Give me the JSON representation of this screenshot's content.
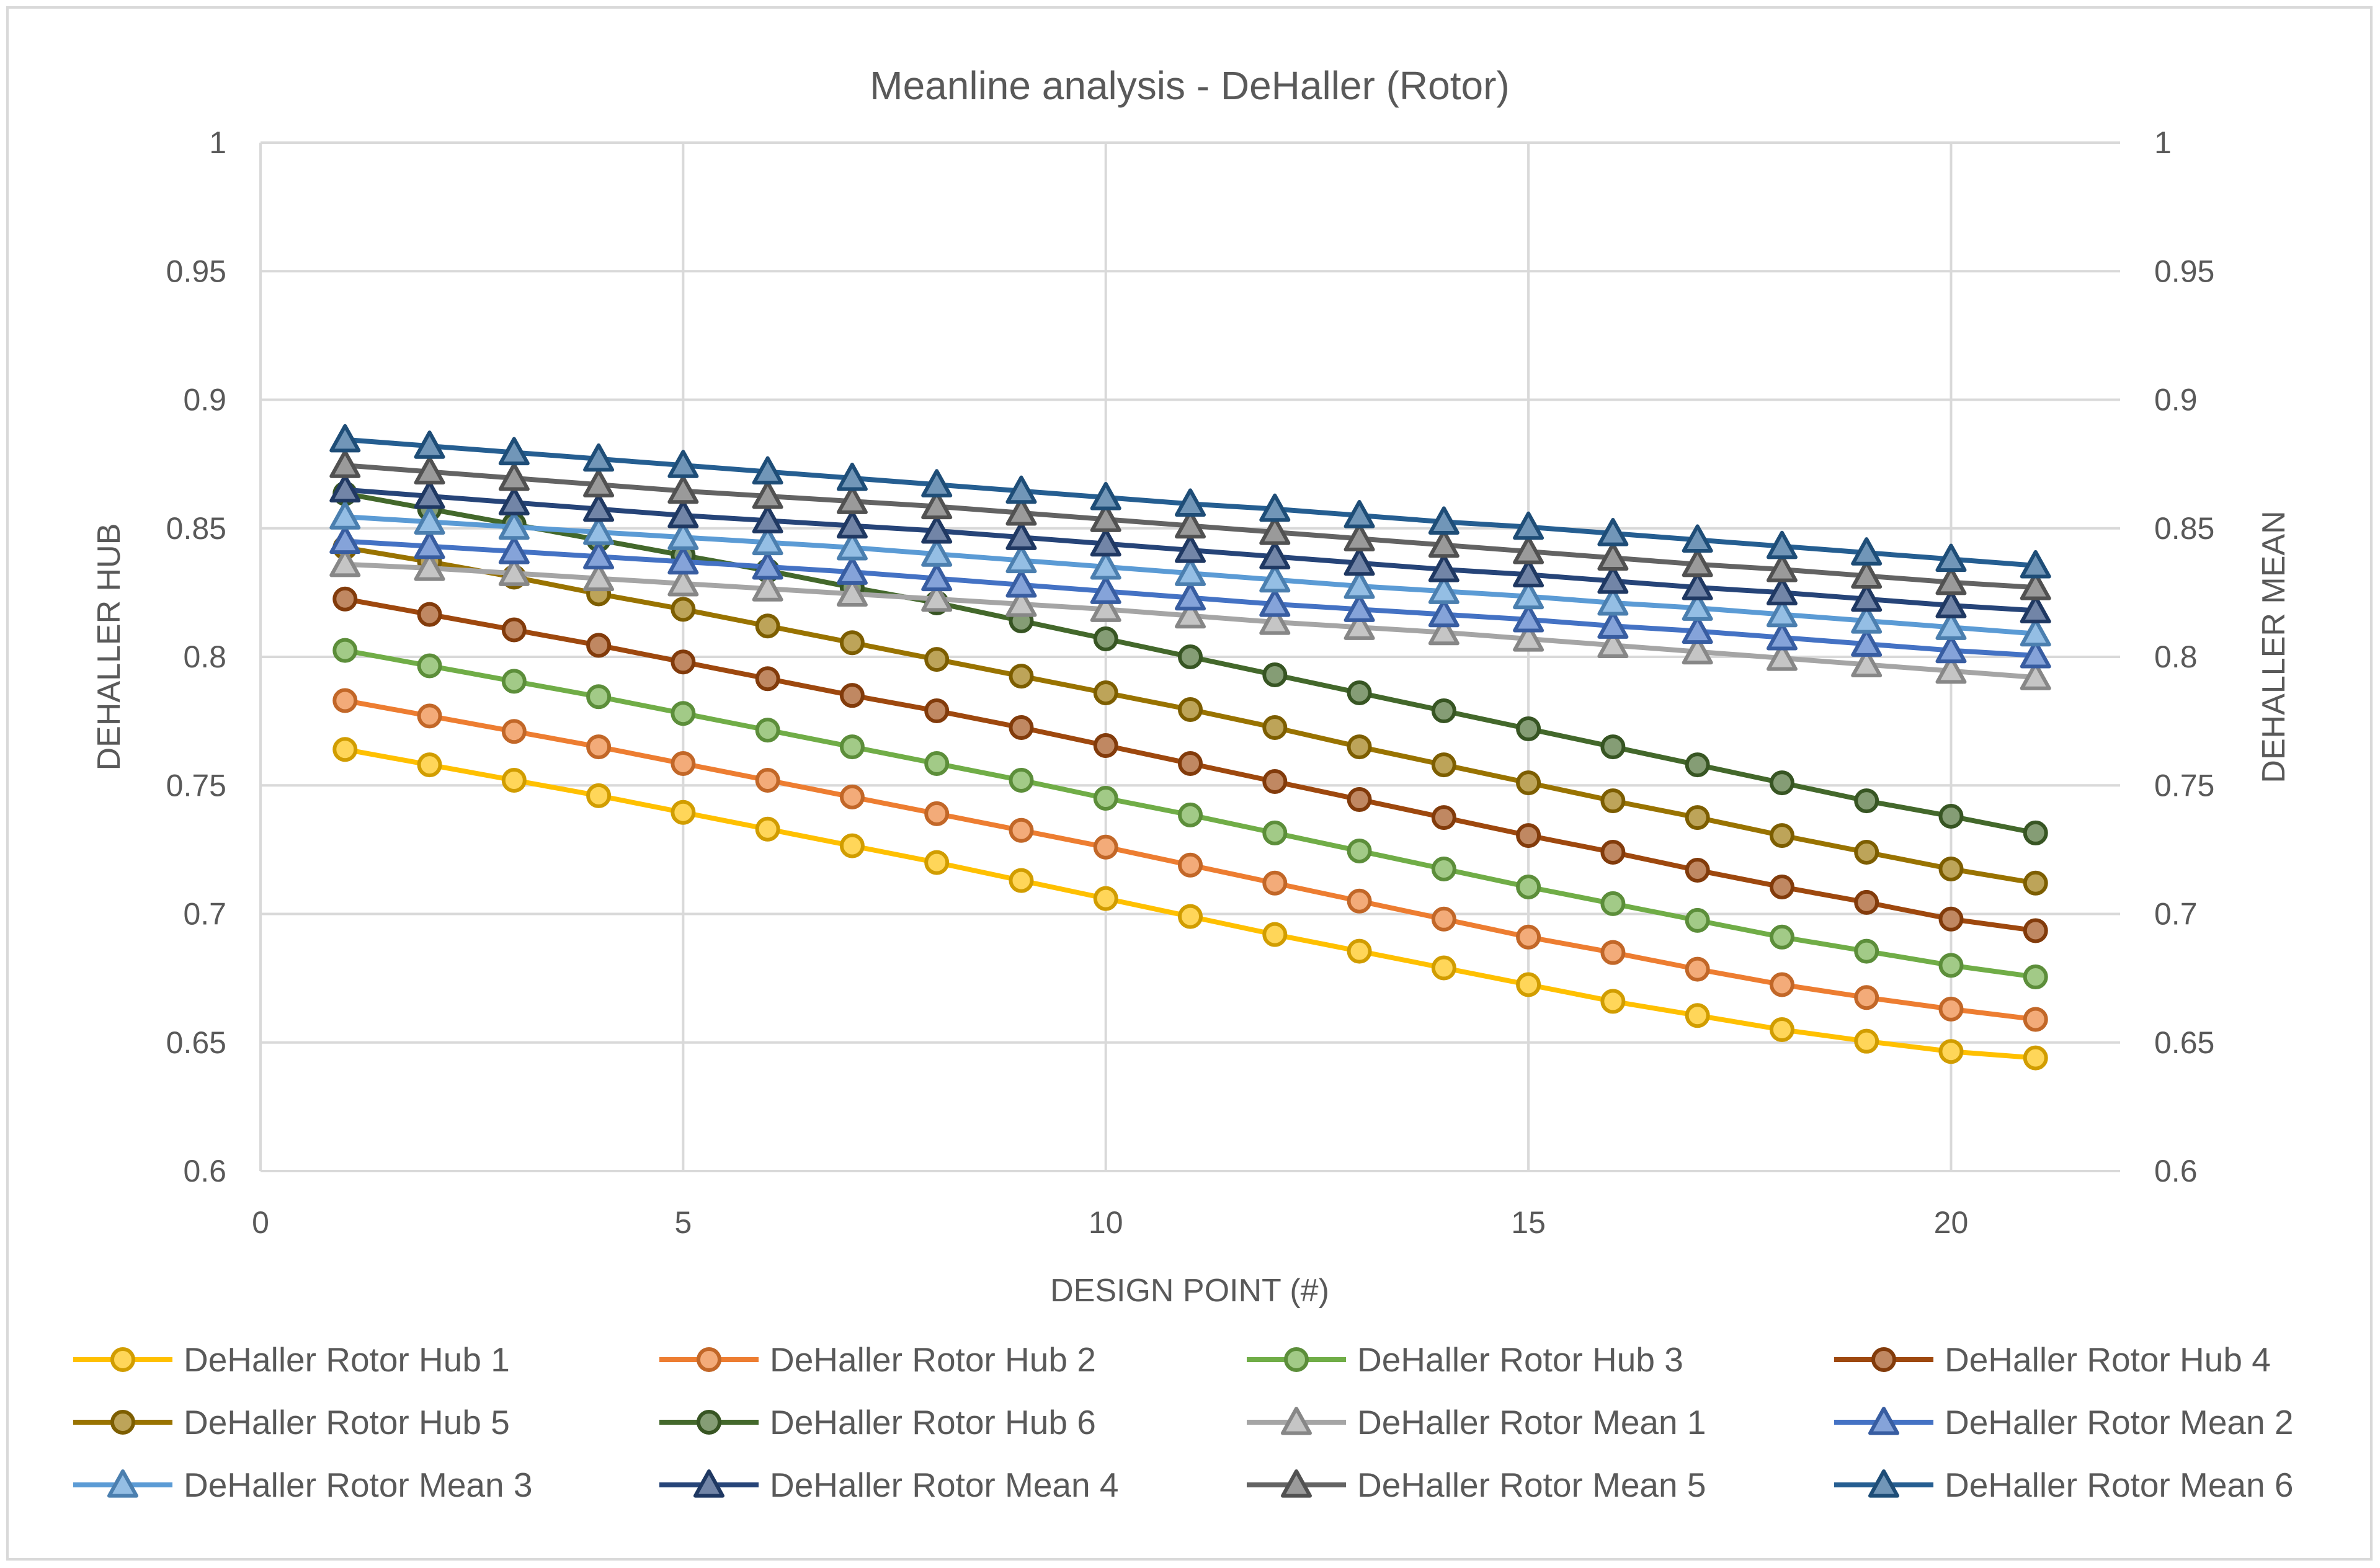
{
  "chart_data": {
    "type": "line",
    "title": "Meanline analysis - DeHaller (Rotor)",
    "xlabel": "DESIGN POINT (#)",
    "ylabel": "DEHALLER HUB",
    "y2label": "DEHALLER MEAN",
    "xlim": [
      0,
      22
    ],
    "ylim": [
      0.6,
      1
    ],
    "y2lim": [
      0.6,
      1
    ],
    "x_ticks": [
      "0",
      "5",
      "10",
      "15",
      "20"
    ],
    "y_ticks": [
      "0.6",
      "0.65",
      "0.7",
      "0.75",
      "0.8",
      "0.85",
      "0.9",
      "0.95",
      "1"
    ],
    "y2_ticks": [
      "0.6",
      "0.65",
      "0.7",
      "0.75",
      "0.8",
      "0.85",
      "0.9",
      "0.95",
      "1"
    ],
    "grid": true,
    "legend_position": "bottom",
    "x": [
      1,
      2,
      3,
      4,
      5,
      6,
      7,
      8,
      9,
      10,
      11,
      12,
      13,
      14,
      15,
      16,
      17,
      18,
      19,
      20,
      21
    ],
    "series": [
      {
        "name": "DeHaller Rotor Hub 1",
        "axis": "left",
        "color": "#FFC000",
        "marker": "circle",
        "values": [
          0.764,
          0.758,
          0.752,
          0.746,
          0.7395,
          0.733,
          0.7265,
          0.72,
          0.713,
          0.706,
          0.699,
          0.692,
          0.6855,
          0.679,
          0.6725,
          0.666,
          0.6605,
          0.655,
          0.6505,
          0.6465,
          0.644
        ]
      },
      {
        "name": "DeHaller Rotor Hub 2",
        "axis": "left",
        "color": "#ED7D31",
        "marker": "circle",
        "values": [
          0.783,
          0.777,
          0.771,
          0.765,
          0.7585,
          0.752,
          0.7455,
          0.739,
          0.7325,
          0.726,
          0.719,
          0.712,
          0.705,
          0.698,
          0.691,
          0.685,
          0.6785,
          0.6725,
          0.6675,
          0.663,
          0.659
        ]
      },
      {
        "name": "DeHaller Rotor Hub 3",
        "axis": "left",
        "color": "#70AD47",
        "marker": "circle",
        "values": [
          0.8025,
          0.7965,
          0.7905,
          0.7845,
          0.778,
          0.7715,
          0.765,
          0.7585,
          0.752,
          0.745,
          0.7385,
          0.7315,
          0.7245,
          0.7175,
          0.7105,
          0.704,
          0.6975,
          0.691,
          0.6855,
          0.68,
          0.6755
        ]
      },
      {
        "name": "DeHaller Rotor Hub 4",
        "axis": "left",
        "color": "#9E480E",
        "marker": "circle",
        "values": [
          0.8225,
          0.8165,
          0.8105,
          0.8045,
          0.798,
          0.7915,
          0.785,
          0.779,
          0.7725,
          0.7655,
          0.7585,
          0.7515,
          0.7445,
          0.7375,
          0.7305,
          0.724,
          0.717,
          0.7105,
          0.7045,
          0.698,
          0.6935
        ]
      },
      {
        "name": "DeHaller Rotor Hub 5",
        "axis": "left",
        "color": "#997300",
        "marker": "circle",
        "values": [
          0.8425,
          0.837,
          0.831,
          0.8245,
          0.8185,
          0.812,
          0.8055,
          0.799,
          0.7925,
          0.786,
          0.7795,
          0.7725,
          0.765,
          0.758,
          0.751,
          0.744,
          0.7375,
          0.7305,
          0.724,
          0.7175,
          0.712
        ]
      },
      {
        "name": "DeHaller Rotor Hub 6",
        "axis": "left",
        "color": "#43682B",
        "marker": "circle",
        "values": [
          0.8635,
          0.8575,
          0.8515,
          0.8455,
          0.8395,
          0.8335,
          0.827,
          0.821,
          0.814,
          0.807,
          0.8,
          0.793,
          0.786,
          0.779,
          0.772,
          0.765,
          0.758,
          0.751,
          0.744,
          0.738,
          0.7315
        ]
      },
      {
        "name": "DeHaller Rotor Mean 1",
        "axis": "right",
        "color": "#A5A5A5",
        "marker": "triangle",
        "values": [
          0.836,
          0.8345,
          0.8325,
          0.8305,
          0.8285,
          0.8265,
          0.8245,
          0.8225,
          0.8205,
          0.8185,
          0.816,
          0.8135,
          0.8115,
          0.8095,
          0.807,
          0.8045,
          0.802,
          0.7995,
          0.797,
          0.7945,
          0.792
        ]
      },
      {
        "name": "DeHaller Rotor Mean 2",
        "axis": "right",
        "color": "#4472C4",
        "marker": "triangle",
        "values": [
          0.845,
          0.843,
          0.841,
          0.839,
          0.837,
          0.835,
          0.833,
          0.8305,
          0.828,
          0.8255,
          0.823,
          0.8205,
          0.8185,
          0.8165,
          0.8145,
          0.812,
          0.81,
          0.8075,
          0.805,
          0.8025,
          0.8005
        ]
      },
      {
        "name": "DeHaller Rotor Mean 3",
        "axis": "right",
        "color": "#5B9BD5",
        "marker": "triangle",
        "values": [
          0.8545,
          0.8525,
          0.8505,
          0.8485,
          0.8465,
          0.8445,
          0.8425,
          0.84,
          0.8375,
          0.835,
          0.8325,
          0.83,
          0.8275,
          0.8255,
          0.8235,
          0.821,
          0.819,
          0.8165,
          0.814,
          0.8115,
          0.809
        ]
      },
      {
        "name": "DeHaller Rotor Mean 4",
        "axis": "right",
        "color": "#264478",
        "marker": "triangle",
        "values": [
          0.865,
          0.8625,
          0.86,
          0.8575,
          0.855,
          0.853,
          0.851,
          0.849,
          0.8465,
          0.844,
          0.8415,
          0.839,
          0.8365,
          0.834,
          0.832,
          0.8295,
          0.827,
          0.825,
          0.8225,
          0.82,
          0.818
        ]
      },
      {
        "name": "DeHaller Rotor Mean 5",
        "axis": "right",
        "color": "#636363",
        "marker": "triangle",
        "values": [
          0.8745,
          0.872,
          0.8695,
          0.867,
          0.8645,
          0.8625,
          0.8605,
          0.8585,
          0.856,
          0.8535,
          0.851,
          0.8485,
          0.846,
          0.8435,
          0.841,
          0.8385,
          0.836,
          0.834,
          0.8315,
          0.829,
          0.827
        ]
      },
      {
        "name": "DeHaller Rotor Mean 6",
        "axis": "right",
        "color": "#255E91",
        "marker": "triangle",
        "values": [
          0.8845,
          0.882,
          0.8795,
          0.877,
          0.8745,
          0.872,
          0.8695,
          0.867,
          0.8645,
          0.862,
          0.8595,
          0.8575,
          0.855,
          0.8525,
          0.8505,
          0.848,
          0.8455,
          0.843,
          0.8405,
          0.838,
          0.8355
        ]
      }
    ]
  }
}
